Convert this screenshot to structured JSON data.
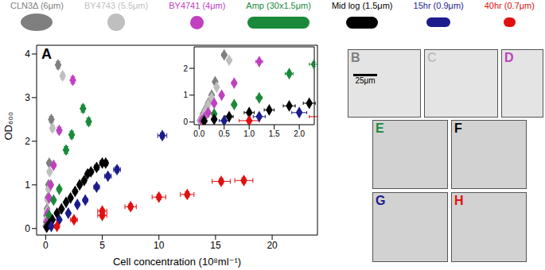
{
  "chart_data": {
    "type": "scatter",
    "panel_label": "A",
    "x_label": "Cell concentration (10⁸ml⁻¹)",
    "y_label": "OD₆₀₀",
    "xlim": [
      -0.8,
      24
    ],
    "xticks": [
      0,
      5,
      10,
      15,
      20
    ],
    "ylim": [
      -0.15,
      4.2
    ],
    "yticks": [
      0,
      1,
      2,
      3,
      4
    ],
    "marker": "diamond",
    "series": [
      {
        "name": "CLN3Δ (6μm)",
        "color": "#7f7f7f",
        "x": [
          0.02,
          0.05,
          0.08,
          0.12,
          0.18,
          0.25,
          0.32,
          0.5,
          1.1
        ],
        "values": [
          0.05,
          0.15,
          0.3,
          0.45,
          0.7,
          1.0,
          1.5,
          2.5,
          3.75
        ],
        "x_err": [
          0.02,
          0.02,
          0.02,
          0.03,
          0.03,
          0.04,
          0.04,
          0.05,
          0.1
        ],
        "y_err": [
          0.02,
          0.02,
          0.03,
          0.03,
          0.04,
          0.05,
          0.05,
          0.07,
          0.08
        ]
      },
      {
        "name": "BY4743 (5.5μm)",
        "color": "#bfbfbf",
        "x": [
          0.03,
          0.07,
          0.12,
          0.18,
          0.25,
          0.35,
          0.6,
          1.5
        ],
        "values": [
          0.05,
          0.2,
          0.4,
          0.65,
          0.9,
          1.3,
          2.3,
          3.5
        ],
        "x_err": [
          0.02,
          0.02,
          0.03,
          0.03,
          0.04,
          0.04,
          0.05,
          0.1
        ],
        "y_err": [
          0.02,
          0.03,
          0.03,
          0.04,
          0.05,
          0.05,
          0.07,
          0.08
        ]
      },
      {
        "name": "BY4741 (4μm)",
        "color": "#c040c0",
        "x": [
          0.05,
          0.1,
          0.18,
          0.3,
          0.45,
          0.7,
          1.2,
          2.4
        ],
        "values": [
          0.05,
          0.15,
          0.35,
          0.7,
          1.0,
          1.45,
          2.25,
          3.4
        ],
        "x_err": [
          0.02,
          0.03,
          0.03,
          0.04,
          0.04,
          0.05,
          0.07,
          0.1
        ],
        "y_err": [
          0.02,
          0.03,
          0.03,
          0.04,
          0.05,
          0.05,
          0.07,
          0.08
        ]
      },
      {
        "name": "Amp (30x1.5μm)",
        "color": "#1a8a3a",
        "x": [
          0.1,
          0.3,
          0.7,
          1.2,
          1.8,
          2.3,
          3.8,
          3.3
        ],
        "values": [
          0.05,
          0.3,
          0.65,
          0.9,
          1.8,
          2.15,
          2.45,
          2.75
        ],
        "x_err": [
          0.03,
          0.04,
          0.05,
          0.06,
          0.08,
          0.1,
          0.12,
          0.12
        ],
        "y_err": [
          0.02,
          0.03,
          0.04,
          0.05,
          0.08,
          0.08,
          0.08,
          0.08
        ]
      },
      {
        "name": "Mid log (1.5μm)",
        "color": "#000000",
        "x": [
          0.1,
          0.3,
          0.6,
          1.0,
          1.4,
          1.8,
          2.2,
          2.6,
          3.0,
          3.4,
          3.7,
          4.0,
          4.5,
          5.0,
          5.3
        ],
        "values": [
          0.03,
          0.1,
          0.2,
          0.35,
          0.45,
          0.6,
          0.7,
          0.85,
          1.0,
          1.1,
          1.25,
          1.3,
          1.4,
          1.5,
          1.5
        ],
        "x_err": [
          0.05,
          0.05,
          0.08,
          0.1,
          0.1,
          0.12,
          0.12,
          0.15,
          0.15,
          0.15,
          0.18,
          0.18,
          0.2,
          0.2,
          0.2
        ],
        "y_err": [
          0.02,
          0.02,
          0.02,
          0.03,
          0.03,
          0.03,
          0.04,
          0.04,
          0.05,
          0.05,
          0.05,
          0.05,
          0.06,
          0.06,
          0.06
        ]
      },
      {
        "name": "15hr (0.9μm)",
        "color": "#1c1c8c",
        "x": [
          0.5,
          1.2,
          2.0,
          2.8,
          3.5,
          4.5,
          5.5,
          6.3,
          10.3
        ],
        "values": [
          0.05,
          0.2,
          0.35,
          0.55,
          0.65,
          0.95,
          1.2,
          1.35,
          2.13
        ],
        "x_err": [
          0.1,
          0.12,
          0.15,
          0.18,
          0.2,
          0.25,
          0.3,
          0.3,
          0.4
        ],
        "y_err": [
          0.02,
          0.03,
          0.03,
          0.04,
          0.04,
          0.05,
          0.05,
          0.06,
          0.06
        ]
      },
      {
        "name": "40hr (0.7μm)",
        "color": "#e01010",
        "x": [
          1.0,
          2.5,
          5.0,
          5.0,
          7.5,
          10.0,
          12.5,
          15.5,
          17.5
        ],
        "values": [
          0.05,
          0.2,
          0.3,
          0.4,
          0.5,
          0.72,
          0.78,
          1.08,
          1.1
        ],
        "x_err": [
          0.2,
          0.3,
          0.4,
          0.4,
          0.5,
          0.6,
          0.6,
          0.8,
          0.8
        ],
        "y_err": [
          0.03,
          0.05,
          0.05,
          0.05,
          0.06,
          0.06,
          0.06,
          0.06,
          0.06
        ]
      }
    ],
    "inset": {
      "xlim": [
        -0.1,
        2.3
      ],
      "xticks": [
        {
          "value": 0,
          "label": "0.0"
        },
        {
          "value": 0.5,
          "label": "0.5"
        },
        {
          "value": 1,
          "label": "1.0"
        },
        {
          "value": 1.5,
          "label": "1.5"
        },
        {
          "value": 2,
          "label": "2.0"
        }
      ],
      "ylim": [
        -0.1,
        2.8
      ],
      "yticks": [
        0,
        1,
        2
      ]
    }
  },
  "images": [
    {
      "label": "B",
      "series": "CLN3Δ (6μm)",
      "scale_bar": "25μm"
    },
    {
      "label": "C",
      "series": "BY4743 (5.5μm)"
    },
    {
      "label": "D",
      "series": "BY4741 (4μm)"
    },
    {
      "label": "E",
      "series": "Amp (30x1.5μm)"
    },
    {
      "label": "F",
      "series": "Mid log (1.5μm)"
    },
    {
      "label": "G",
      "series": "15hr (0.9μm)"
    },
    {
      "label": "H",
      "series": "40hr (0.7μm)"
    }
  ]
}
